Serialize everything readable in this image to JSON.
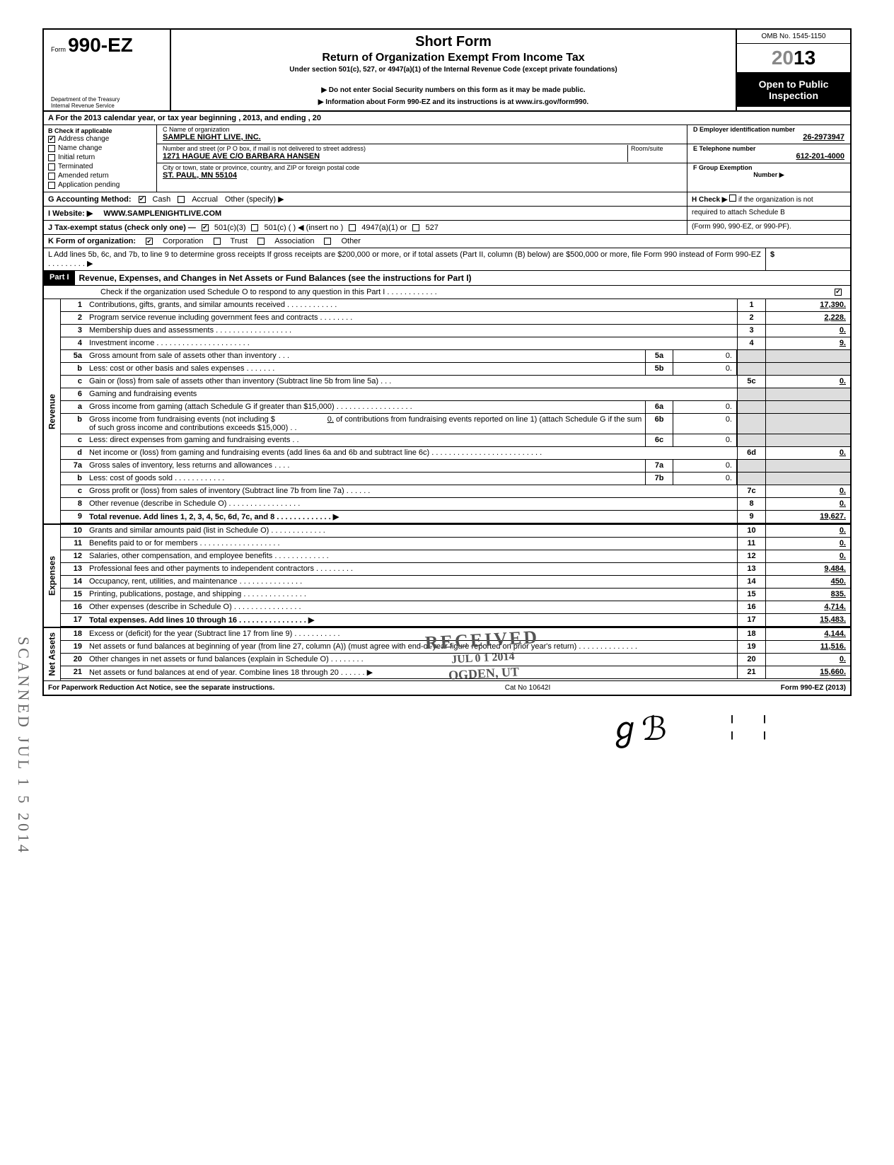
{
  "form": {
    "number_prefix": "Form",
    "number": "990-EZ",
    "dept1": "Department of the Treasury",
    "dept2": "Internal Revenue Service",
    "title": "Short Form",
    "subtitle": "Return of Organization Exempt From Income Tax",
    "under": "Under section 501(c), 527, or 4947(a)(1) of the Internal Revenue Code (except private foundations)",
    "note1": "Do not enter Social Security numbers on this form as it may be made public.",
    "note2": "Information about Form 990-EZ and its instructions is at www.irs.gov/form990.",
    "omb": "OMB No. 1545-1150",
    "year_grey": "20",
    "year_bold": "13",
    "open1": "Open to Public",
    "open2": "Inspection"
  },
  "lineA": "A  For the 2013 calendar year, or tax year beginning                                                              , 2013, and ending                                           , 20",
  "sectionB": {
    "label": "B  Check if applicable",
    "items": [
      {
        "label": "Address change",
        "checked": true
      },
      {
        "label": "Name change",
        "checked": false
      },
      {
        "label": "Initial return",
        "checked": false
      },
      {
        "label": "Terminated",
        "checked": false
      },
      {
        "label": "Amended return",
        "checked": false
      },
      {
        "label": "Application pending",
        "checked": false
      }
    ]
  },
  "sectionC": {
    "name_lbl": "C  Name of organization",
    "name": "SAMPLE NIGHT LIVE, INC.",
    "addr_lbl": "Number and street (or P O  box, if mail is not delivered to street address)",
    "room_lbl": "Room/suite",
    "addr": "1271 HAGUE AVE C/O BARBARA HANSEN",
    "city_lbl": "City or town, state or province, country, and ZIP or foreign postal code",
    "city": "ST. PAUL, MN 55104"
  },
  "sectionD": {
    "lbl": "D Employer identification number",
    "val": "26-2973947"
  },
  "sectionE": {
    "lbl": "E Telephone number",
    "val": "612-201-4000"
  },
  "sectionF": {
    "lbl": "F Group Exemption",
    "lbl2": "Number ▶"
  },
  "lineG": {
    "label": "G  Accounting Method:",
    "cash": "Cash",
    "accrual": "Accrual",
    "other": "Other (specify) ▶"
  },
  "lineH": {
    "txt1": "H  Check ▶",
    "txt2": "if the organization is not",
    "txt3": "required to attach Schedule B",
    "txt4": "(Form 990, 990-EZ, or 990-PF)."
  },
  "lineI": {
    "label": "I   Website: ▶",
    "val": "WWW.SAMPLENIGHTLIVE.COM"
  },
  "lineJ": {
    "label": "J  Tax-exempt status (check only one) —",
    "o1": "501(c)(3)",
    "o2": "501(c) (          ) ◀ (insert no )",
    "o3": "4947(a)(1) or",
    "o4": "527"
  },
  "lineK": {
    "label": "K  Form of organization:",
    "o1": "Corporation",
    "o2": "Trust",
    "o3": "Association",
    "o4": "Other"
  },
  "lineL": "L  Add lines 5b, 6c, and 7b, to line 9 to determine gross receipts  If gross receipts are $200,000 or more, or if total assets (Part II, column (B) below) are $500,000 or more, file Form 990 instead of Form 990-EZ .   .    .    .    .        .    .    .   . ▶",
  "lineL_val": "$",
  "part1": {
    "hdr": "Part I",
    "title": "Revenue, Expenses, and Changes in Net Assets or Fund Balances (see the instructions for Part I)",
    "check": "Check if the organization used Schedule O to respond to any question in this Part I .   .   .   .   .   .   .   .   .   .   .   ."
  },
  "revenue_label": "Revenue",
  "expenses_label": "Expenses",
  "netassets_label": "Net Assets",
  "lines": {
    "l1": {
      "n": "1",
      "t": "Contributions, gifts, grants, and similar amounts received .    .    .    .    .    .    .    .    .    .    .    .",
      "c": "1",
      "v": "17,390."
    },
    "l2": {
      "n": "2",
      "t": "Program service revenue including government fees and contracts    .    .    .    .    .    .    .    .",
      "c": "2",
      "v": "2,228."
    },
    "l3": {
      "n": "3",
      "t": "Membership dues and assessments .    .    .    .    .    .    .    .    .    .    .    .    .    .    .    .    .    .",
      "c": "3",
      "v": "0."
    },
    "l4": {
      "n": "4",
      "t": "Investment income    .    .    .    .    .    .    .    .    .    .    .    .    .    .    .    .    .    .    .    .    .    .",
      "c": "4",
      "v": "9."
    },
    "l5a": {
      "n": "5a",
      "t": "Gross amount from sale of assets other than inventory    .    .    .",
      "sc": "5a",
      "sv": "0."
    },
    "l5b": {
      "n": "b",
      "t": "Less: cost or other basis and sales expenses .    .    .    .    .    .    .",
      "sc": "5b",
      "sv": "0."
    },
    "l5c": {
      "n": "c",
      "t": "Gain or (loss) from sale of assets other than inventory (Subtract line 5b from line 5a) .    .    .",
      "c": "5c",
      "v": "0."
    },
    "l6": {
      "n": "6",
      "t": "Gaming and fundraising events"
    },
    "l6a": {
      "n": "a",
      "t": "Gross income from gaming (attach Schedule G if greater than $15,000) .    .    .    .    .    .    .    .    .    .    .    .    .    .    .    .    .    .",
      "sc": "6a",
      "sv": "0."
    },
    "l6b": {
      "n": "b",
      "t": "Gross income from fundraising events (not including  $",
      "t2": "of contributions from fundraising events reported on line 1) (attach Schedule G if the sum of such gross income and contributions exceeds $15,000) .   .",
      "sc_inline": "0.",
      "sc": "6b",
      "sv": "0."
    },
    "l6c": {
      "n": "c",
      "t": "Less: direct expenses from gaming and fundraising events    .    .",
      "sc": "6c",
      "sv": "0."
    },
    "l6d": {
      "n": "d",
      "t": "Net income or (loss) from gaming and fundraising events (add lines 6a and 6b and subtract line 6c)    .    .    .    .    .    .    .    .    .    .    .    .    .    .    .    .    .    .    .    .    .    .    .    .    .    .",
      "c": "6d",
      "v": "0."
    },
    "l7a": {
      "n": "7a",
      "t": "Gross sales of inventory, less returns and allowances .    .    .    .",
      "sc": "7a",
      "sv": "0."
    },
    "l7b": {
      "n": "b",
      "t": "Less: cost of goods sold     .    .    .    .    .    .    .    .    .    .    .    .",
      "sc": "7b",
      "sv": "0."
    },
    "l7c": {
      "n": "c",
      "t": "Gross profit or (loss) from sales of inventory (Subtract line 7b from line 7a)   .    .    .    .    .    .",
      "c": "7c",
      "v": "0."
    },
    "l8": {
      "n": "8",
      "t": "Other revenue (describe in Schedule O) .    .    .    .    .    .    .    .    .    .    .    .    .    .    .    .    .",
      "c": "8",
      "v": "0."
    },
    "l9": {
      "n": "9",
      "t": "Total revenue. Add lines 1, 2, 3, 4, 5c, 6d, 7c, and 8   .    .    .    .    .    .    .    .    .    .    .    .    . ▶",
      "c": "9",
      "v": "19,627.",
      "bold": true
    },
    "l10": {
      "n": "10",
      "t": "Grants and similar amounts paid (list in Schedule O)    .    .    .    .    .    .    .    .    .    .    .    .    .",
      "c": "10",
      "v": "0."
    },
    "l11": {
      "n": "11",
      "t": "Benefits paid to or for members   .    .    .    .    .    .    .    .    .    .    .    .    .    .    .    .    .    .    .",
      "c": "11",
      "v": "0."
    },
    "l12": {
      "n": "12",
      "t": "Salaries, other compensation, and employee benefits   .    .    .    .    .    .    .    .    .    .    .    .    .",
      "c": "12",
      "v": "0."
    },
    "l13": {
      "n": "13",
      "t": "Professional fees and other payments to independent contractors   .    .    .    .    .    .    .    .    .",
      "c": "13",
      "v": "9,484."
    },
    "l14": {
      "n": "14",
      "t": "Occupancy, rent, utilities, and maintenance    .    .    .    .    .    .    .    .    .    .    .    .    .    .    .",
      "c": "14",
      "v": "450."
    },
    "l15": {
      "n": "15",
      "t": "Printing, publications, postage, and shipping .    .    .    .    .    .    .    .    .    .    .    .    .    .    .",
      "c": "15",
      "v": "835."
    },
    "l16": {
      "n": "16",
      "t": "Other expenses (describe in Schedule O)   .    .    .    .    .    .    .    .    .    .    .    .    .    .    .    .",
      "c": "16",
      "v": "4,714."
    },
    "l17": {
      "n": "17",
      "t": "Total expenses. Add lines 10 through 16  .    .    .    .    .    .    .    .    .    .    .    .    .    .    .    . ▶",
      "c": "17",
      "v": "15,483.",
      "bold": true
    },
    "l18": {
      "n": "18",
      "t": "Excess or (deficit) for the year (Subtract line 17 from line 9)    .    .    .    .    .    .    .    .    .    .    .",
      "c": "18",
      "v": "4,144."
    },
    "l19": {
      "n": "19",
      "t": "Net assets or fund balances at beginning of year (from line 27, column (A)) (must agree with end-of-year figure reported on prior year's return)    .    .    .    .    .    .    .    .    .    .    .    .    .    .",
      "c": "19",
      "v": "11,516."
    },
    "l20": {
      "n": "20",
      "t": "Other changes in net assets or fund balances (explain in Schedule O) .    .    .    .    .    .    .    .",
      "c": "20",
      "v": "0."
    },
    "l21": {
      "n": "21",
      "t": "Net assets or fund balances at end of year. Combine lines 18 through 20    .    .    .    .    .    . ▶",
      "c": "21",
      "v": "15,660."
    }
  },
  "footer": {
    "left": "For Paperwork Reduction Act Notice, see the separate instructions.",
    "mid": "Cat  No  10642I",
    "right": "Form 990-EZ (2013)"
  },
  "stamps": {
    "received": "RECEIVED",
    "received_date": "JUL  0 1  2014",
    "received_loc": "OGDEN, UT",
    "scanned": "SCANNED JUL 1 5 2014"
  },
  "colors": {
    "text": "#000000",
    "bg": "#ffffff",
    "grey": "#dddddd",
    "stamp": "#555555"
  }
}
